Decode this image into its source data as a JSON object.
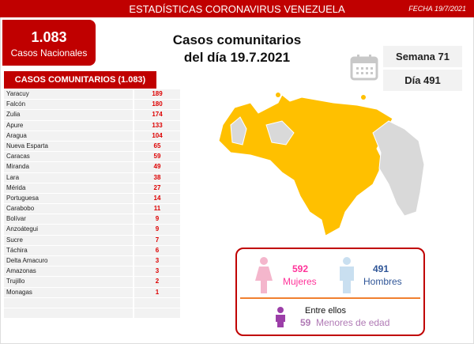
{
  "header": {
    "title": "ESTADÍSTICAS CORONAVIRUS VENEZUELA",
    "date": "FECHA 19/7/2021"
  },
  "national": {
    "value": "1.083",
    "label": "Casos Nacionales"
  },
  "main_title": {
    "line1": "Casos comunitarios",
    "line2": "del día 19.7.2021"
  },
  "week": "Semana 71",
  "day": "Día 491",
  "table": {
    "header": "CASOS COMUNITARIOS (1.083)",
    "rows": [
      [
        "Yaracuy",
        "189"
      ],
      [
        "Falcón",
        "180"
      ],
      [
        "Zulia",
        "174"
      ],
      [
        "Apure",
        "133"
      ],
      [
        "Aragua",
        "104"
      ],
      [
        "Nueva Esparta",
        "65"
      ],
      [
        "Caracas",
        "59"
      ],
      [
        "Miranda",
        "49"
      ],
      [
        "Lara",
        "38"
      ],
      [
        "Mérida",
        "27"
      ],
      [
        "Portuguesa",
        "14"
      ],
      [
        "Carabobo",
        "11"
      ],
      [
        "Bolívar",
        "9"
      ],
      [
        "Anzoátegui",
        "9"
      ],
      [
        "Sucre",
        "7"
      ],
      [
        "Táchira",
        "6"
      ],
      [
        "Delta Amacuro",
        "3"
      ],
      [
        "Amazonas",
        "3"
      ],
      [
        "Trujillo",
        "2"
      ],
      [
        "Monagas",
        "1"
      ],
      [
        "",
        ""
      ],
      [
        "",
        ""
      ]
    ]
  },
  "gender": {
    "women_count": "592",
    "women_label": "Mujeres",
    "men_count": "491",
    "men_label": "Hombres",
    "among": "Entre ellos",
    "minors_count": "59",
    "minors_label": "Menores de edad"
  },
  "colors": {
    "red": "#c00000",
    "map_cases": "#ffc000",
    "map_none": "#d9d9d9",
    "women": "#ff3399",
    "men": "#2f5597",
    "minors": "#b07ab5"
  }
}
